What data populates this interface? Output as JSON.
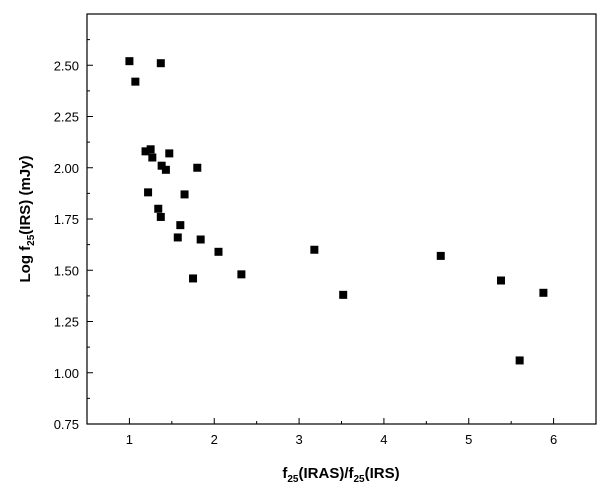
{
  "chart_data": {
    "type": "scatter",
    "title": "",
    "xlabel": {
      "parts": [
        "f",
        "25",
        "(IRAS)/f",
        "25",
        "(IRS)"
      ]
    },
    "ylabel": {
      "parts": [
        "Log f",
        "25",
        "(IRS) (mJy)"
      ]
    },
    "xlim": [
      0.5,
      6.5
    ],
    "ylim": [
      0.75,
      2.75
    ],
    "xticks": [
      1,
      2,
      3,
      4,
      5,
      6
    ],
    "xtick_labels": [
      "1",
      "2",
      "3",
      "4",
      "5",
      "6"
    ],
    "yticks": [
      0.75,
      1.0,
      1.25,
      1.5,
      1.75,
      2.0,
      2.25,
      2.5
    ],
    "ytick_labels": [
      "0.75",
      "1.00",
      "1.25",
      "1.50",
      "1.75",
      "2.00",
      "2.25",
      "2.50"
    ],
    "grid": false,
    "marker": "square",
    "color": "#000000",
    "points": [
      {
        "x": 1.0,
        "y": 2.52
      },
      {
        "x": 1.07,
        "y": 2.42
      },
      {
        "x": 1.37,
        "y": 2.51
      },
      {
        "x": 1.19,
        "y": 2.08
      },
      {
        "x": 1.25,
        "y": 2.09
      },
      {
        "x": 1.27,
        "y": 2.05
      },
      {
        "x": 1.47,
        "y": 2.07
      },
      {
        "x": 1.38,
        "y": 2.01
      },
      {
        "x": 1.43,
        "y": 1.99
      },
      {
        "x": 1.8,
        "y": 2.0
      },
      {
        "x": 1.22,
        "y": 1.88
      },
      {
        "x": 1.65,
        "y": 1.87
      },
      {
        "x": 1.34,
        "y": 1.8
      },
      {
        "x": 1.37,
        "y": 1.76
      },
      {
        "x": 1.6,
        "y": 1.72
      },
      {
        "x": 1.57,
        "y": 1.66
      },
      {
        "x": 1.84,
        "y": 1.65
      },
      {
        "x": 2.05,
        "y": 1.59
      },
      {
        "x": 1.75,
        "y": 1.46
      },
      {
        "x": 2.32,
        "y": 1.48
      },
      {
        "x": 3.18,
        "y": 1.6
      },
      {
        "x": 3.52,
        "y": 1.38
      },
      {
        "x": 4.67,
        "y": 1.57
      },
      {
        "x": 5.38,
        "y": 1.45
      },
      {
        "x": 5.88,
        "y": 1.39
      },
      {
        "x": 5.6,
        "y": 1.06
      }
    ]
  }
}
